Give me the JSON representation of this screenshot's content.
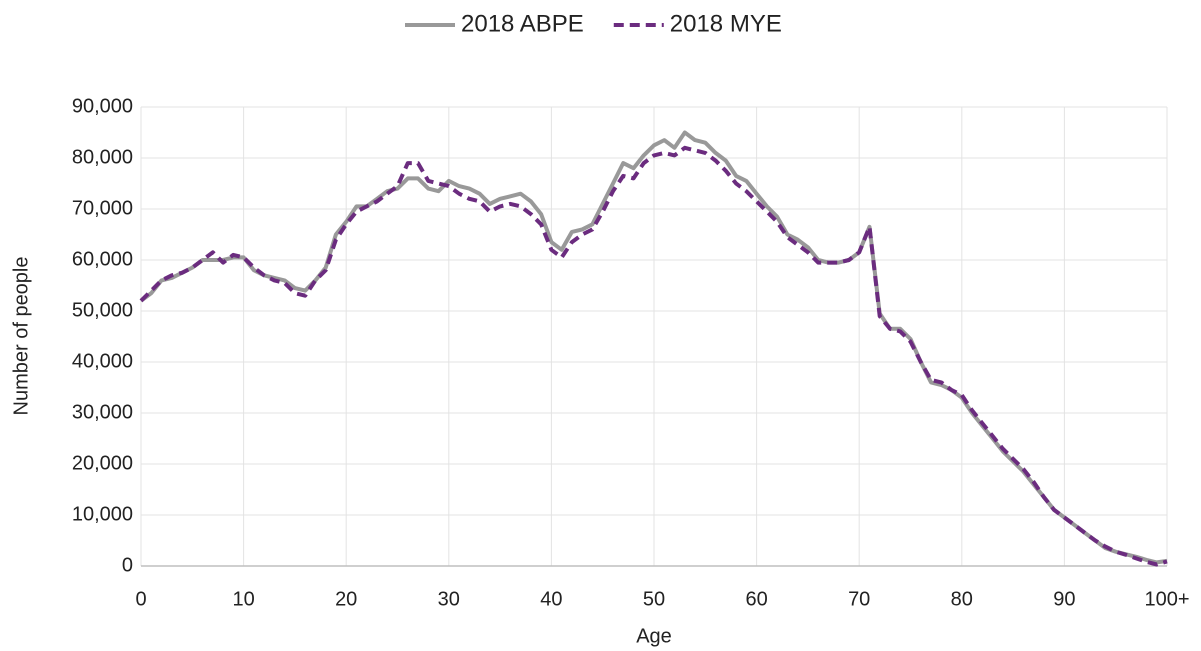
{
  "chart_data": {
    "type": "line",
    "x_label": "Age",
    "y_label": "Number of people",
    "x": [
      0,
      1,
      2,
      3,
      4,
      5,
      6,
      7,
      8,
      9,
      10,
      11,
      12,
      13,
      14,
      15,
      16,
      17,
      18,
      19,
      20,
      21,
      22,
      23,
      24,
      25,
      26,
      27,
      28,
      29,
      30,
      31,
      32,
      33,
      34,
      35,
      36,
      37,
      38,
      39,
      40,
      41,
      42,
      43,
      44,
      45,
      46,
      47,
      48,
      49,
      50,
      51,
      52,
      53,
      54,
      55,
      56,
      57,
      58,
      59,
      60,
      61,
      62,
      63,
      64,
      65,
      66,
      67,
      68,
      69,
      70,
      71,
      72,
      73,
      74,
      75,
      76,
      77,
      78,
      79,
      80,
      81,
      82,
      83,
      84,
      85,
      86,
      87,
      88,
      89,
      90,
      91,
      92,
      93,
      94,
      95,
      96,
      97,
      98,
      99,
      100
    ],
    "series": [
      {
        "name": "2018 ABPE",
        "color": "#999999",
        "dash": false,
        "values": [
          52000,
          53500,
          56000,
          56500,
          57500,
          58500,
          60000,
          60000,
          60000,
          60500,
          60500,
          58000,
          57000,
          56500,
          56000,
          54500,
          54000,
          56000,
          58500,
          65000,
          67500,
          70500,
          70500,
          72000,
          73500,
          74000,
          76000,
          76000,
          74000,
          73500,
          75500,
          74500,
          74000,
          73000,
          71000,
          72000,
          72500,
          73000,
          71500,
          69000,
          63500,
          62000,
          65500,
          66000,
          67000,
          71000,
          75000,
          79000,
          78000,
          80500,
          82500,
          83500,
          82000,
          85000,
          83500,
          83000,
          81000,
          79500,
          76500,
          75500,
          73000,
          70500,
          68500,
          65000,
          64000,
          62500,
          60000,
          59500,
          59500,
          60000,
          61500,
          66500,
          49500,
          46500,
          46500,
          44500,
          40000,
          36000,
          35500,
          34500,
          33000,
          30000,
          27500,
          25000,
          22500,
          20500,
          18500,
          16000,
          13500,
          11000,
          9500,
          8000,
          6500,
          5000,
          3500,
          2800,
          2300,
          1800,
          1200,
          700,
          1000
        ]
      },
      {
        "name": "2018 MYE",
        "color": "#6b2c7f",
        "dash": true,
        "values": [
          52000,
          54000,
          56000,
          57000,
          57500,
          58500,
          60000,
          61500,
          59500,
          61000,
          60500,
          58500,
          57000,
          56000,
          55500,
          53500,
          53000,
          56000,
          58000,
          64000,
          67000,
          69500,
          70500,
          71500,
          73000,
          74500,
          79000,
          79000,
          75500,
          75000,
          74500,
          73000,
          72000,
          71500,
          69500,
          70500,
          71000,
          70500,
          69000,
          67000,
          62000,
          60500,
          63500,
          65000,
          66000,
          69500,
          73500,
          76500,
          76000,
          79000,
          80500,
          81000,
          80500,
          82000,
          81500,
          81000,
          79500,
          77500,
          75000,
          73500,
          71500,
          69500,
          67500,
          64500,
          63000,
          61500,
          59500,
          59500,
          59500,
          60000,
          61500,
          66500,
          49000,
          46500,
          46000,
          44000,
          40000,
          36500,
          36000,
          34500,
          33500,
          30500,
          28000,
          25500,
          23000,
          21000,
          19000,
          16500,
          13500,
          11000,
          9500,
          8000,
          6500,
          5000,
          3800,
          2800,
          2200,
          1500,
          800,
          300,
          900
        ]
      }
    ],
    "xlim": [
      0,
      100
    ],
    "xticks": [
      0,
      10,
      20,
      30,
      40,
      50,
      60,
      70,
      80,
      90,
      {
        "value": 100,
        "label": "100+"
      }
    ],
    "ylim": [
      0,
      90000
    ],
    "yticks": [
      0,
      {
        "value": 10000,
        "label": "10,000"
      },
      {
        "value": 20000,
        "label": "20,000"
      },
      {
        "value": 30000,
        "label": "30,000"
      },
      {
        "value": 40000,
        "label": "40,000"
      },
      {
        "value": 50000,
        "label": "50,000"
      },
      {
        "value": 60000,
        "label": "60,000"
      },
      {
        "value": 70000,
        "label": "70,000"
      },
      {
        "value": 80000,
        "label": "80,000"
      },
      {
        "value": 90000,
        "label": "90,000"
      }
    ],
    "grid": true,
    "legend": "top"
  }
}
